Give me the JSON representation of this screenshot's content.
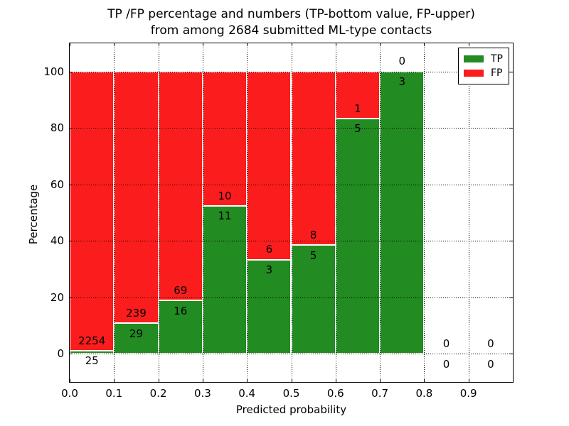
{
  "title": {
    "line1": "TP /FP percentage and numbers (TP-bottom value, FP-upper)",
    "line2": "from among 2684 submitted ML-type contacts"
  },
  "axes": {
    "xlabel": "Predicted probability",
    "ylabel": "Percentage",
    "xlim": [
      0.0,
      1.0
    ],
    "ylim": [
      -10,
      110
    ],
    "x_ticks": [
      0.0,
      0.1,
      0.2,
      0.3,
      0.4,
      0.5,
      0.6,
      0.7,
      0.8,
      0.9
    ],
    "x_tick_labels": [
      "0.0",
      "0.1",
      "0.2",
      "0.3",
      "0.4",
      "0.5",
      "0.6",
      "0.7",
      "0.8",
      "0.9"
    ],
    "y_ticks": [
      0,
      20,
      40,
      60,
      80,
      100
    ],
    "y_tick_labels": [
      "0",
      "20",
      "40",
      "60",
      "80",
      "100"
    ]
  },
  "legend": {
    "position": "upper right",
    "entries": [
      {
        "label": "TP",
        "color": "#228b22"
      },
      {
        "label": "FP",
        "color": "#fb1d1d"
      }
    ]
  },
  "chart_data": {
    "type": "bar",
    "stacked": true,
    "normalized_to_percent": true,
    "grid": true,
    "title": "TP /FP percentage and numbers (TP-bottom value, FP-upper) from among 2684 submitted ML-type contacts",
    "xlabel": "Predicted probability",
    "ylabel": "Percentage",
    "xlim": [
      0.0,
      1.0
    ],
    "ylim": [
      -10,
      110
    ],
    "legend_position": "upper right",
    "bins": [
      [
        0.0,
        0.1
      ],
      [
        0.1,
        0.2
      ],
      [
        0.2,
        0.3
      ],
      [
        0.3,
        0.4
      ],
      [
        0.4,
        0.5
      ],
      [
        0.5,
        0.6
      ],
      [
        0.6,
        0.7
      ],
      [
        0.7,
        0.8
      ],
      [
        0.8,
        0.9
      ],
      [
        0.9,
        1.0
      ]
    ],
    "series": [
      {
        "name": "TP",
        "color": "#228b22",
        "counts": [
          25,
          29,
          16,
          11,
          3,
          5,
          5,
          3,
          0,
          0
        ],
        "percent": [
          1.1,
          10.8,
          18.8,
          52.4,
          33.3,
          38.5,
          83.3,
          100.0,
          0.0,
          0.0
        ]
      },
      {
        "name": "FP",
        "color": "#fb1d1d",
        "counts": [
          2254,
          239,
          69,
          10,
          6,
          8,
          1,
          0,
          0,
          0
        ],
        "percent": [
          98.9,
          89.2,
          81.2,
          47.6,
          66.7,
          61.5,
          16.7,
          0.0,
          0.0,
          0.0
        ]
      }
    ],
    "label_offset_percent": 3.6
  }
}
